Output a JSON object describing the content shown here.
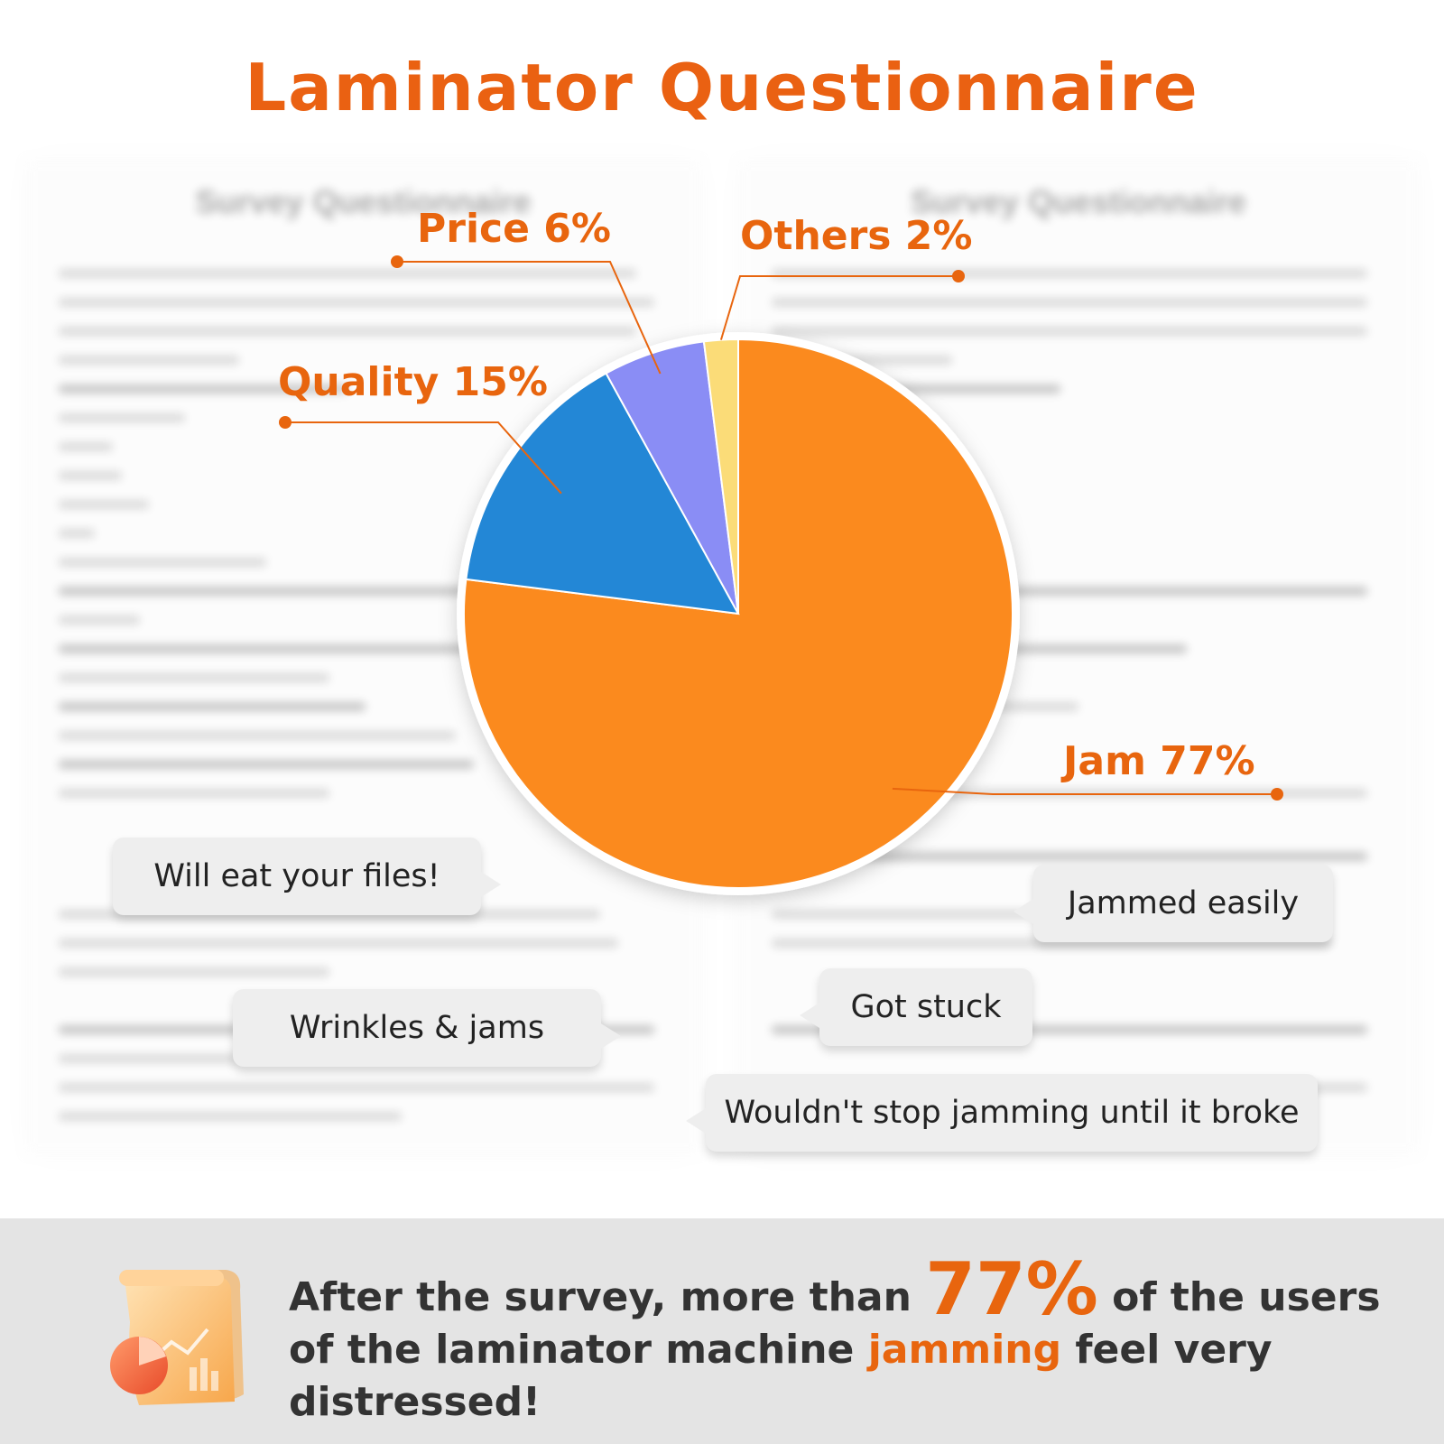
{
  "title": "Laminator Questionnaire",
  "background_doc": {
    "heading": "Survey Questionnaire"
  },
  "chart_data": {
    "type": "pie",
    "title": "Laminator Questionnaire",
    "slices": [
      {
        "name": "Jam",
        "value": 77,
        "label": "Jam 77%",
        "color": "#fb8a1e"
      },
      {
        "name": "Quality",
        "value": 15,
        "label": "Quality 15%",
        "color": "#2387d6"
      },
      {
        "name": "Price",
        "value": 6,
        "label": "Price 6%",
        "color": "#8a8df5"
      },
      {
        "name": "Others",
        "value": 2,
        "label": "Others 2%",
        "color": "#fbdc78"
      }
    ],
    "label_color": "#e8650e",
    "leader_line_color": "#e8650e"
  },
  "comments": [
    "Will eat your files!",
    "Jammed easily",
    "Got stuck",
    "Wrinkles & jams",
    "Wouldn't stop jamming until it broke"
  ],
  "summary": {
    "part1": "After the survey, more than ",
    "highlight_number": "77%",
    "part2": " of the users of the laminator machine ",
    "highlight_word": "jamming",
    "part3": " feel very distressed!"
  },
  "icons": [
    "document-chart-icon"
  ]
}
